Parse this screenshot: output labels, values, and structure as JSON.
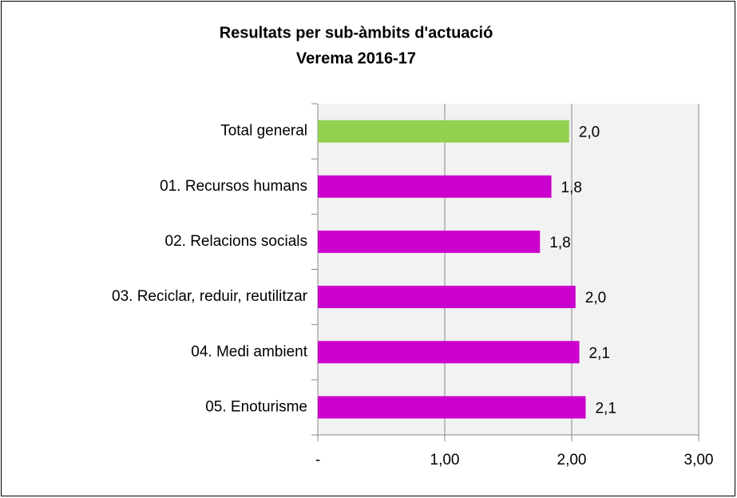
{
  "chart_data": {
    "type": "bar",
    "orientation": "horizontal",
    "title": [
      "Resultats per sub-àmbits d'actuació",
      "Verema 2016-17"
    ],
    "categories": [
      "Total general",
      "01. Recursos humans",
      "02. Relacions socials",
      "03. Reciclar, reduir, reutilitzar",
      "04. Medi ambient",
      "05. Enoturisme"
    ],
    "values": [
      1.98,
      1.84,
      1.75,
      2.03,
      2.06,
      2.11
    ],
    "value_labels": [
      "2,0",
      "1,8",
      "1,8",
      "2,0",
      "2,1",
      "2,1"
    ],
    "colors": [
      "#92d050",
      "#cc00cc",
      "#cc00cc",
      "#cc00cc",
      "#cc00cc",
      "#cc00cc"
    ],
    "xlim": [
      0,
      3
    ],
    "xticks": [
      {
        "value": 0,
        "label": "-"
      },
      {
        "value": 1,
        "label": "1,00"
      },
      {
        "value": 2,
        "label": "2,00"
      },
      {
        "value": 3,
        "label": "3,00"
      }
    ],
    "grid": true
  }
}
